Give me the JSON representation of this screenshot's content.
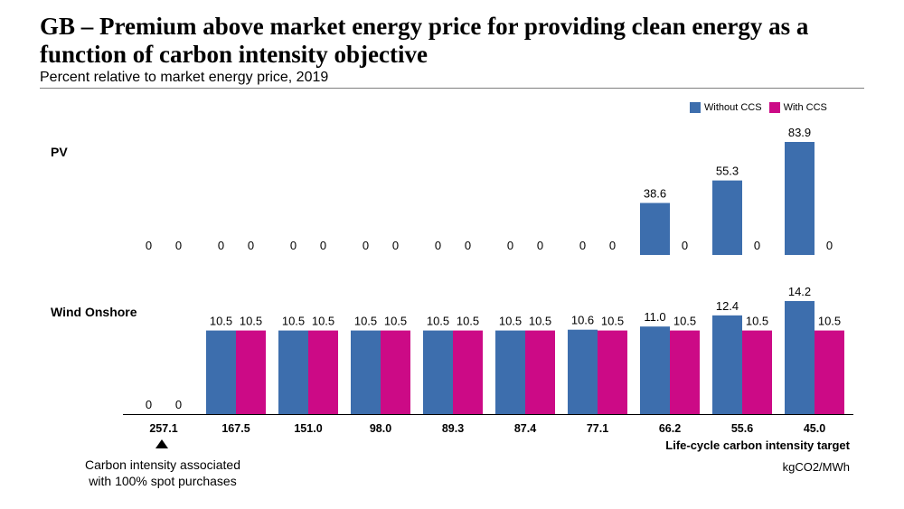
{
  "header": {
    "title": "GB – Premium above market energy price for providing clean energy as a function of carbon intensity objective",
    "subtitle": "Percent relative to market energy price, 2019"
  },
  "legend": [
    {
      "label": "Without CCS",
      "color": "#3d6ead"
    },
    {
      "label": "With CCS",
      "color": "#cc0a86"
    }
  ],
  "annotation": {
    "line1": "Carbon intensity associated",
    "line2": "with 100% spot purchases"
  },
  "chart_data": {
    "type": "bar",
    "categories": [
      "257.1",
      "167.5",
      "151.0",
      "98.0",
      "89.3",
      "87.4",
      "77.1",
      "66.2",
      "55.6",
      "45.0"
    ],
    "xlabel": "Life-cycle carbon intensity target",
    "xunit": "kgCO2/MWh",
    "panels": [
      {
        "name": "PV",
        "ylim": [
          0,
          90
        ],
        "series": [
          {
            "name": "Without CCS",
            "values": [
              0,
              0,
              0,
              0,
              0,
              0,
              0,
              38.6,
              55.3,
              83.9
            ],
            "labels": [
              "0",
              "0",
              "0",
              "0",
              "0",
              "0",
              "0",
              "38.6",
              "55.3",
              "83.9"
            ]
          },
          {
            "name": "With CCS",
            "values": [
              0,
              0,
              0,
              0,
              0,
              0,
              0,
              0,
              0,
              0
            ],
            "labels": [
              "0",
              "0",
              "0",
              "0",
              "0",
              "0",
              "0",
              "0",
              "0",
              "0"
            ]
          }
        ]
      },
      {
        "name": "Wind Onshore",
        "ylim": [
          0,
          15
        ],
        "series": [
          {
            "name": "Without CCS",
            "values": [
              0,
              10.5,
              10.5,
              10.5,
              10.5,
              10.5,
              10.6,
              11.0,
              12.4,
              14.2
            ],
            "labels": [
              "0",
              "10.5",
              "10.5",
              "10.5",
              "10.5",
              "10.5",
              "10.6",
              "11.0",
              "12.4",
              "14.2"
            ]
          },
          {
            "name": "With CCS",
            "values": [
              0,
              10.5,
              10.5,
              10.5,
              10.5,
              10.5,
              10.5,
              10.5,
              10.5,
              10.5
            ],
            "labels": [
              "0",
              "10.5",
              "10.5",
              "10.5",
              "10.5",
              "10.5",
              "10.5",
              "10.5",
              "10.5",
              "10.5"
            ]
          }
        ]
      }
    ]
  }
}
